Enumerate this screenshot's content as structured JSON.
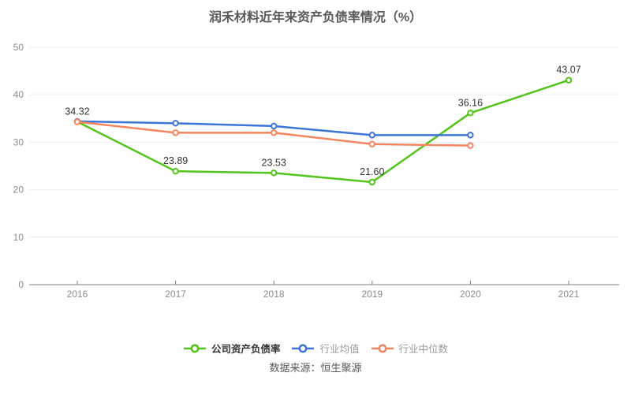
{
  "title": "润禾材料近年来资产负债率情况（%）",
  "source": "数据来源：恒生聚源",
  "colors": {
    "company": "#52c41a",
    "industry_avg": "#3d74da",
    "industry_median": "#f5855f",
    "grid": "#e8edf5",
    "axis": "#808080",
    "tick_label": "#8c8c8c",
    "value_label": "#333333"
  },
  "chart_data": {
    "type": "line",
    "title": "润禾材料近年来资产负债率情况（%）",
    "categories": [
      "2016",
      "2017",
      "2018",
      "2019",
      "2020",
      "2021"
    ],
    "series": [
      {
        "name": "公司资产负债率",
        "color_key": "company",
        "values": [
          34.32,
          23.89,
          23.53,
          21.6,
          36.16,
          43.07
        ],
        "point_labels": [
          "34.32",
          "23.89",
          "23.53",
          "21.60",
          "36.16",
          "43.07"
        ]
      },
      {
        "name": "行业均值",
        "color_key": "industry_avg",
        "values": [
          34.4,
          34.0,
          33.4,
          31.5,
          31.5,
          null
        ],
        "point_labels": null
      },
      {
        "name": "行业中位数",
        "color_key": "industry_median",
        "values": [
          34.3,
          32.0,
          32.0,
          29.6,
          29.3,
          null
        ],
        "point_labels": null
      }
    ],
    "xlabel": "",
    "ylabel": "",
    "ylim": [
      0,
      50
    ],
    "yticks": [
      0,
      10,
      20,
      30,
      40,
      50
    ],
    "grid": true,
    "legend_position": "bottom"
  },
  "legend": {
    "items": [
      {
        "label": "公司资产负债率",
        "color_key": "company",
        "emphasis": true
      },
      {
        "label": "行业均值",
        "color_key": "industry_avg",
        "emphasis": false
      },
      {
        "label": "行业中位数",
        "color_key": "industry_median",
        "emphasis": false
      }
    ]
  }
}
